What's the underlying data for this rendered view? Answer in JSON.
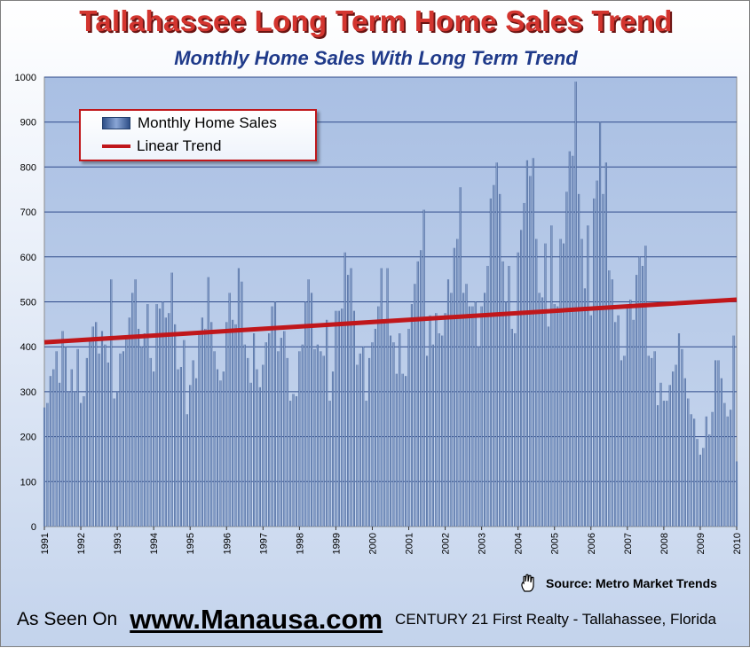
{
  "title": "Tallahassee Long Term Home Sales Trend",
  "subtitle": "Monthly Home Sales With Long Term Trend",
  "legend": {
    "bars_label": "Monthly Home Sales",
    "line_label": "Linear Trend"
  },
  "source": "Source:  Metro Market Trends",
  "footer": {
    "as_seen": "As Seen On",
    "site": "www.Manausa.com",
    "company": "CENTURY 21 First Realty - Tallahassee, Florida"
  },
  "colors": {
    "bars": "#4f6f9f",
    "trend": "#c0171b",
    "plot_background": "#b6c9e8"
  },
  "chart_data": {
    "type": "bar",
    "title": "Tallahassee Long Term Home Sales Trend",
    "subtitle": "Monthly Home Sales With Long Term Trend",
    "x_start": "1991-01",
    "xtick_labels": [
      "1991",
      "1992",
      "1993",
      "1994",
      "1995",
      "1996",
      "1997",
      "1998",
      "1999",
      "2000",
      "2001",
      "2002",
      "2003",
      "2004",
      "2005",
      "2006",
      "2007",
      "2008",
      "2009",
      "2010"
    ],
    "ylim": [
      0,
      1000
    ],
    "yticks": [
      0,
      100,
      200,
      300,
      400,
      500,
      600,
      700,
      800,
      900,
      1000
    ],
    "grid": true,
    "legend_position": "top-left",
    "series": [
      {
        "name": "Monthly Home Sales",
        "type": "bar",
        "values": [
          265,
          275,
          335,
          350,
          390,
          320,
          435,
          400,
          300,
          350,
          300,
          395,
          275,
          290,
          375,
          420,
          445,
          455,
          385,
          435,
          405,
          365,
          550,
          285,
          300,
          385,
          390,
          420,
          465,
          520,
          550,
          440,
          400,
          430,
          495,
          375,
          345,
          495,
          485,
          500,
          465,
          475,
          565,
          450,
          350,
          355,
          415,
          250,
          315,
          370,
          330,
          435,
          465,
          440,
          555,
          455,
          390,
          350,
          325,
          345,
          455,
          520,
          460,
          450,
          575,
          545,
          405,
          375,
          320,
          430,
          350,
          310,
          360,
          410,
          430,
          490,
          500,
          390,
          420,
          435,
          375,
          280,
          295,
          290,
          390,
          405,
          500,
          550,
          520,
          395,
          405,
          390,
          380,
          460,
          280,
          345,
          480,
          480,
          485,
          610,
          560,
          575,
          480,
          360,
          385,
          400,
          280,
          375,
          410,
          440,
          490,
          575,
          460,
          575,
          425,
          410,
          340,
          430,
          340,
          335,
          440,
          495,
          540,
          590,
          615,
          705,
          380,
          470,
          405,
          475,
          430,
          425,
          475,
          550,
          520,
          620,
          640,
          755,
          520,
          540,
          490,
          490,
          500,
          400,
          490,
          520,
          580,
          730,
          760,
          810,
          740,
          590,
          500,
          580,
          440,
          430,
          610,
          660,
          720,
          815,
          780,
          820,
          640,
          520,
          510,
          630,
          445,
          670,
          495,
          490,
          640,
          630,
          745,
          835,
          825,
          990,
          740,
          640,
          530,
          670,
          470,
          730,
          770,
          900,
          740,
          810,
          570,
          550,
          455,
          470,
          370,
          380,
          490,
          505,
          460,
          560,
          600,
          580,
          625,
          380,
          375,
          390,
          270,
          320,
          280,
          280,
          315,
          345,
          360,
          430,
          395,
          330,
          285,
          250,
          240,
          195,
          160,
          175,
          245,
          205,
          255,
          370,
          370,
          330,
          275,
          245,
          260,
          425,
          145
        ]
      },
      {
        "name": "Linear Trend",
        "type": "line",
        "start_value": 410,
        "end_value": 505
      }
    ]
  }
}
